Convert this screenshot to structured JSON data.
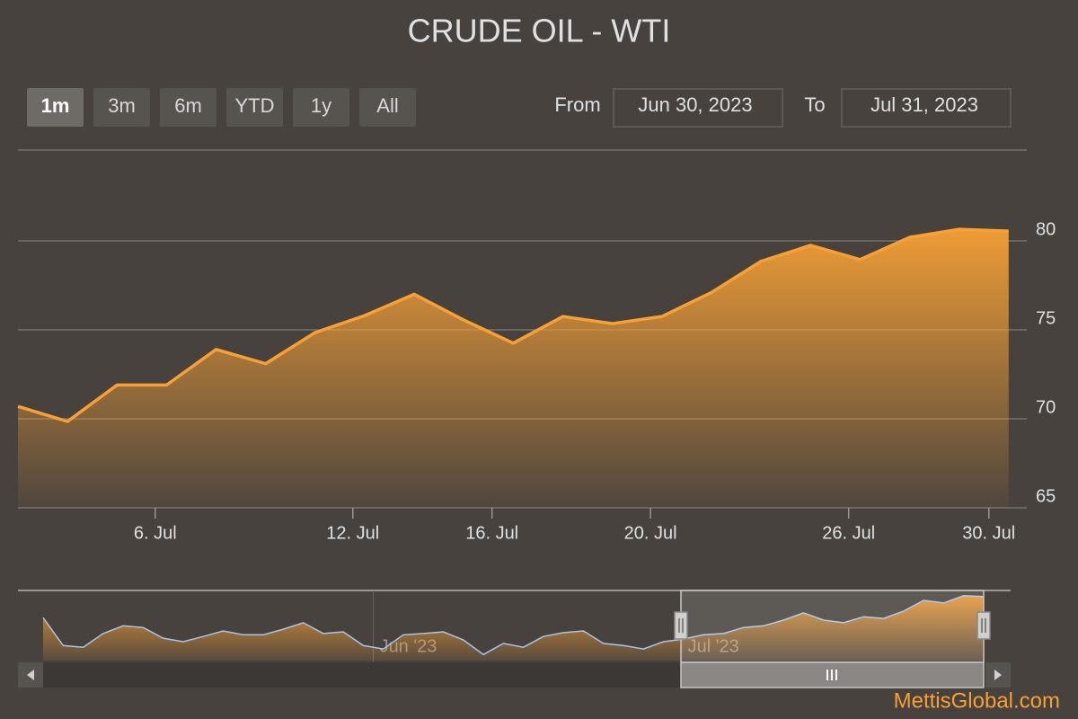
{
  "chart_data": {
    "type": "area",
    "title": "CRUDE OIL - WTI",
    "range_selector": {
      "buttons": [
        "1m",
        "3m",
        "6m",
        "YTD",
        "1y",
        "All"
      ],
      "from_label": "From",
      "from": "Jun 30, 2023",
      "to_label": "To",
      "to": "Jul 31, 2023"
    },
    "series": [
      {
        "name": "WTI",
        "color": "#f7a035",
        "values": [
          70.7,
          69.85,
          71.9,
          71.9,
          73.9,
          73.1,
          74.85,
          75.8,
          77.0,
          75.55,
          74.25,
          75.75,
          75.35,
          75.75,
          77.1,
          78.85,
          79.75,
          78.95,
          80.2,
          80.65,
          80.55
        ]
      }
    ],
    "xlim": [
      0,
      20.04
    ],
    "xticks": [
      {
        "value": 2.77,
        "label": "6. Jul"
      },
      {
        "value": 6.76,
        "label": "12. Jul"
      },
      {
        "value": 9.57,
        "label": "16. Jul"
      },
      {
        "value": 12.77,
        "label": "20. Jul"
      },
      {
        "value": 16.77,
        "label": "26. Jul"
      },
      {
        "value": 19.6,
        "label": "30. Jul"
      }
    ],
    "ylim": [
      65,
      85
    ],
    "yticks": [
      65,
      70,
      75,
      80
    ],
    "grid": true,
    "navigator": {
      "color": "#a9c6e8",
      "values": [
        75.7,
        69.2,
        68.8,
        72.0,
        73.8,
        73.4,
        70.9,
        70.1,
        71.3,
        72.6,
        71.7,
        71.7,
        73.0,
        74.5,
        72.0,
        72.4,
        69.2,
        68.4,
        71.7,
        72.0,
        72.4,
        70.5,
        67.1,
        69.7,
        68.8,
        71.3,
        72.2,
        72.6,
        69.7,
        69.2,
        68.4,
        70.1,
        70.7,
        71.7,
        72.0,
        73.4,
        73.8,
        75.1,
        76.8,
        75.1,
        74.5,
        75.9,
        75.5,
        77.2,
        79.7,
        79.1,
        80.8,
        80.6
      ],
      "xlim": [
        0,
        47
      ],
      "ylim": [
        65.7,
        81.8
      ],
      "xticks": [
        {
          "value": 16.5,
          "label": "Jun '23"
        },
        {
          "value": 31.9,
          "label": "Jul '23"
        }
      ]
    },
    "credit": "MettisGlobal.com"
  }
}
